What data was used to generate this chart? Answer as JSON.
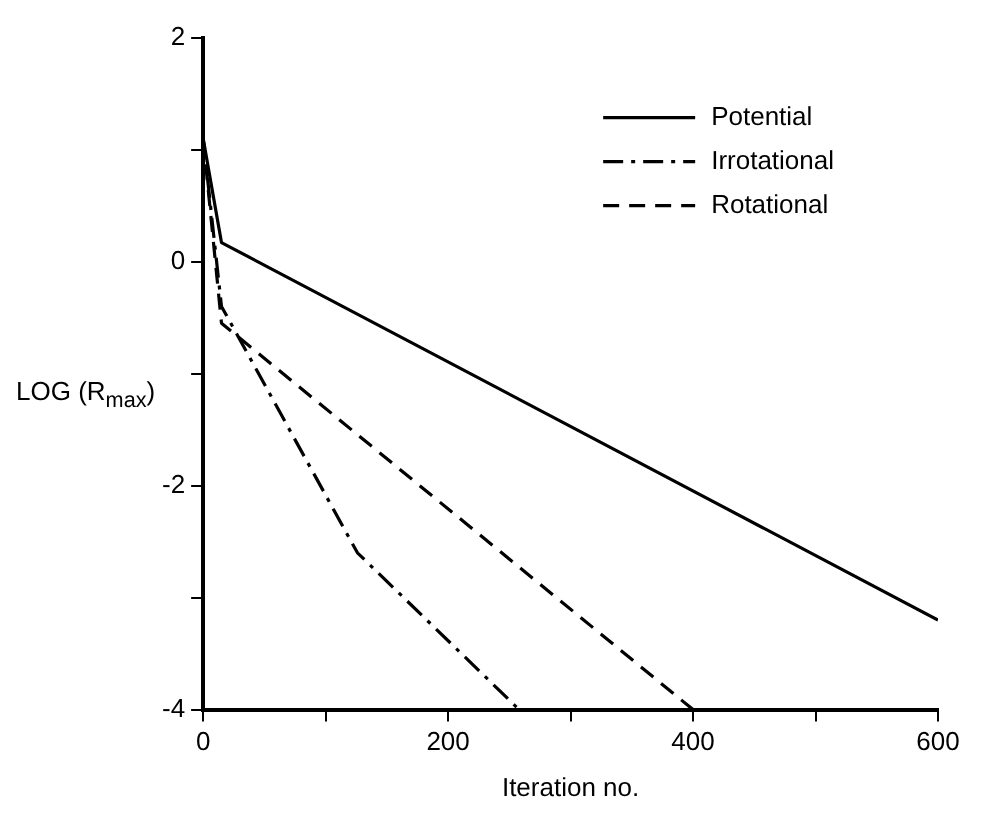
{
  "chart_data": {
    "type": "line",
    "xlabel": "Iteration no.",
    "ylabel": "LOG (R$_{max}$)",
    "xlim": [
      0,
      600
    ],
    "xticks": [
      0,
      {
        "value": 100,
        "label": null
      },
      200,
      {
        "value": 300,
        "label": null
      },
      400,
      {
        "value": 500,
        "label": null
      },
      600
    ],
    "ylim": [
      -4,
      2
    ],
    "yticks": [
      -4,
      {
        "value": -3,
        "label": null
      },
      -2,
      {
        "value": -1,
        "label": null
      },
      0,
      {
        "value": 1,
        "label": null
      },
      2
    ],
    "grid": false,
    "legend": "top right",
    "marker": "none",
    "series": [
      {
        "name": "Potential",
        "color": "#000000",
        "line_style": "solid",
        "x": [
          0,
          15,
          600
        ],
        "values": [
          1.1,
          0.17,
          -3.2
        ]
      },
      {
        "name": "Irrotational",
        "color": "#000000",
        "line_style": "dashdot",
        "x": [
          0,
          15,
          126,
          258
        ],
        "values": [
          1.1,
          -0.4,
          -2.6,
          -4
        ]
      },
      {
        "name": "Rotational",
        "color": "#000000",
        "line_style": "dashed",
        "x": [
          0,
          15,
          400
        ],
        "values": [
          1.1,
          -0.55,
          -4
        ]
      }
    ]
  }
}
